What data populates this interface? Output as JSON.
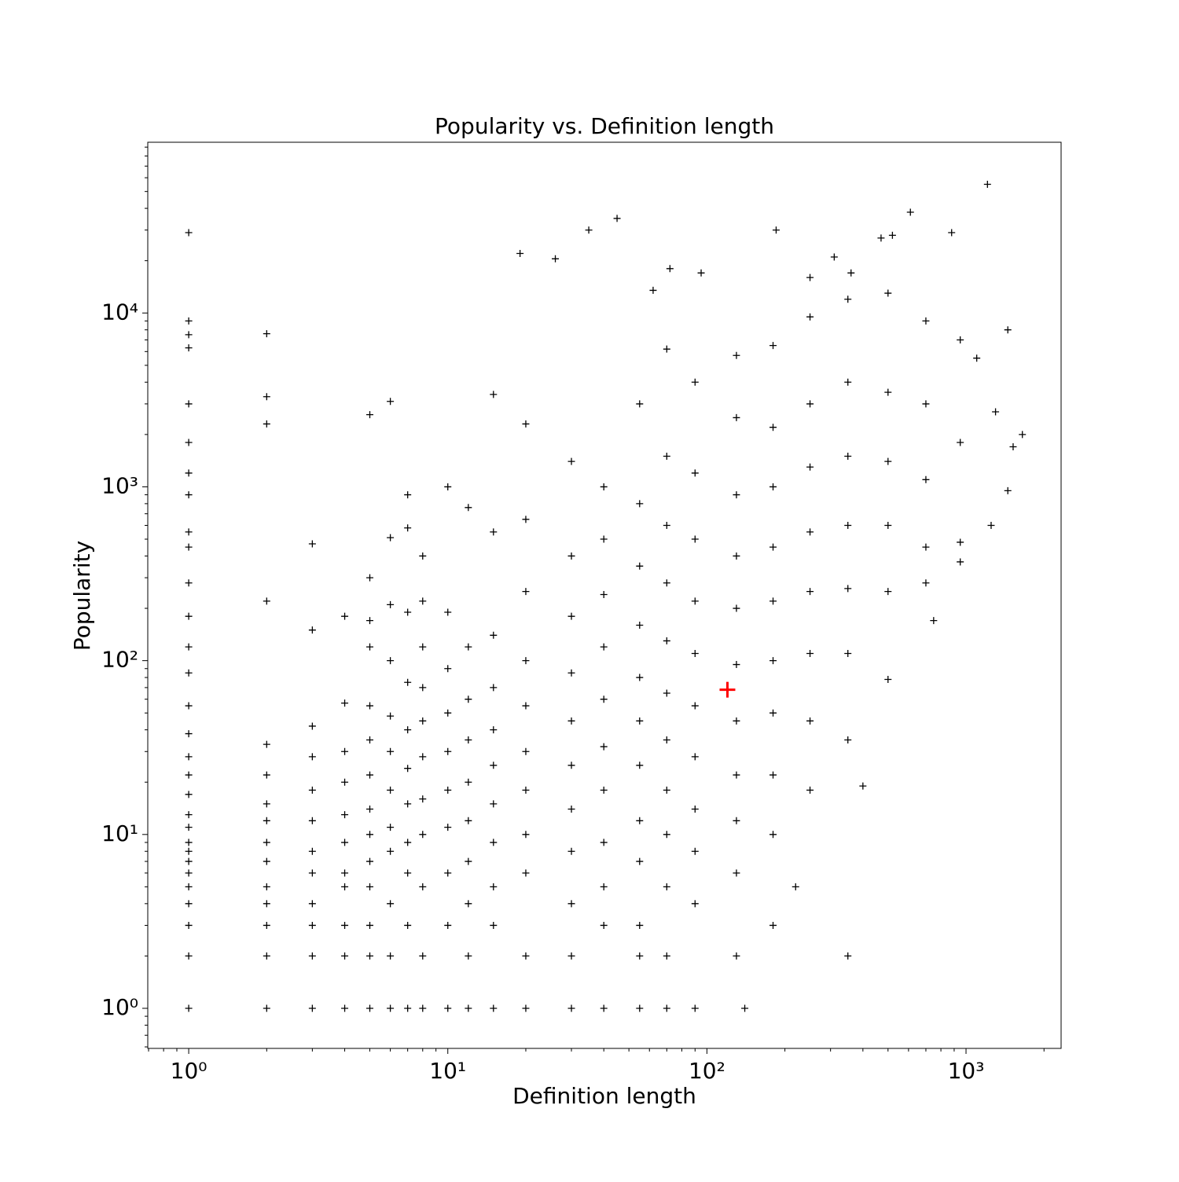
{
  "chart_data": {
    "type": "scatter",
    "title": "Popularity vs. Definition length",
    "x_label": "Definition length",
    "y_label": "Popularity",
    "log_x": true,
    "log_y": true,
    "marker": "+",
    "xlim": [
      0.695,
      2328
    ],
    "ylim": [
      0.588,
      96000
    ],
    "xticks": [
      {
        "value": 1,
        "label": "10⁰"
      },
      {
        "value": 10,
        "label": "10¹"
      },
      {
        "value": 100,
        "label": "10²"
      },
      {
        "value": 1000,
        "label": "10³"
      }
    ],
    "yticks": [
      {
        "value": 1,
        "label": "10⁰"
      },
      {
        "value": 10,
        "label": "10¹"
      },
      {
        "value": 100,
        "label": "10²"
      },
      {
        "value": 1000,
        "label": "10³"
      },
      {
        "value": 10000,
        "label": "10⁴"
      }
    ],
    "xminorticks": [
      0.7,
      0.8,
      0.9,
      2,
      3,
      4,
      5,
      6,
      7,
      8,
      9,
      20,
      30,
      40,
      50,
      60,
      70,
      80,
      90,
      200,
      300,
      400,
      500,
      600,
      700,
      800,
      900,
      2000
    ],
    "yminorticks": [
      0.6,
      0.7,
      0.8,
      0.9,
      2,
      3,
      4,
      5,
      6,
      7,
      8,
      9,
      20,
      30,
      40,
      50,
      60,
      70,
      80,
      90,
      200,
      300,
      400,
      500,
      600,
      700,
      800,
      900,
      2000,
      3000,
      4000,
      5000,
      6000,
      7000,
      8000,
      9000,
      20000,
      30000,
      40000,
      50000,
      60000,
      70000,
      80000,
      90000
    ],
    "series": [
      {
        "color": "#000000",
        "x": [
          1,
          45,
          35,
          19,
          26,
          62,
          72,
          95,
          185,
          610,
          1210,
          880,
          520,
          470,
          310,
          250,
          360,
          1,
          1,
          1,
          2,
          2,
          2,
          6,
          5,
          15,
          1,
          1,
          1,
          1,
          1,
          1,
          1,
          1,
          1,
          1,
          1,
          1,
          1,
          1,
          1,
          1,
          1,
          1,
          1,
          1,
          1,
          1,
          1,
          1,
          1,
          1,
          2,
          2,
          2,
          2,
          2,
          2,
          2,
          2,
          2,
          2,
          2,
          2,
          3,
          3,
          3,
          3,
          3,
          3,
          3,
          3,
          3,
          3,
          3,
          3,
          4,
          4,
          4,
          4,
          4,
          4,
          4,
          4,
          4,
          4,
          4,
          5,
          5,
          5,
          5,
          5,
          5,
          5,
          5,
          5,
          5,
          5,
          5,
          5,
          6,
          6,
          6,
          6,
          6,
          6,
          6,
          6,
          6,
          6,
          6,
          7,
          7,
          7,
          7,
          7,
          7,
          7,
          7,
          7,
          7,
          7,
          8,
          8,
          8,
          8,
          8,
          8,
          8,
          8,
          8,
          8,
          8,
          10,
          10,
          10,
          10,
          10,
          10,
          10,
          10,
          10,
          10,
          12,
          12,
          12,
          12,
          12,
          12,
          12,
          12,
          12,
          12,
          15,
          15,
          15,
          15,
          15,
          15,
          15,
          15,
          15,
          15,
          20,
          20,
          20,
          20,
          20,
          20,
          20,
          20,
          20,
          20,
          20,
          30,
          30,
          30,
          30,
          30,
          30,
          30,
          30,
          30,
          30,
          30,
          40,
          40,
          40,
          40,
          40,
          40,
          40,
          40,
          40,
          40,
          40,
          55,
          55,
          55,
          55,
          55,
          55,
          55,
          55,
          55,
          55,
          55,
          55,
          70,
          70,
          70,
          70,
          70,
          70,
          70,
          70,
          70,
          70,
          70,
          70,
          90,
          90,
          90,
          90,
          90,
          90,
          90,
          90,
          90,
          90,
          90,
          130,
          130,
          130,
          130,
          130,
          130,
          130,
          130,
          130,
          130,
          130,
          180,
          180,
          180,
          180,
          180,
          180,
          180,
          180,
          180,
          180,
          250,
          250,
          250,
          250,
          250,
          250,
          250,
          250,
          350,
          350,
          350,
          350,
          350,
          350,
          350,
          350,
          500,
          500,
          500,
          500,
          500,
          500,
          700,
          700,
          700,
          700,
          700,
          950,
          950,
          950,
          950,
          140,
          220,
          400,
          750,
          1100,
          1250,
          1300,
          1450,
          1450,
          1650,
          1520
        ],
        "values": [
          29000,
          35000,
          30000,
          22000,
          20500,
          13500,
          18000,
          17000,
          30000,
          38000,
          55000,
          29000,
          28000,
          27000,
          21000,
          16000,
          17000,
          9000,
          7500,
          6300,
          7600,
          3300,
          2300,
          3100,
          2600,
          3400,
          3000,
          1800,
          1200,
          900,
          550,
          450,
          280,
          180,
          120,
          85,
          55,
          38,
          28,
          22,
          17,
          13,
          11,
          9,
          8,
          7,
          6,
          5,
          4,
          3,
          2,
          1,
          220,
          33,
          22,
          15,
          12,
          9,
          7,
          5,
          4,
          3,
          2,
          1,
          470,
          150,
          42,
          28,
          18,
          12,
          8,
          6,
          4,
          3,
          2,
          1,
          180,
          57,
          30,
          20,
          13,
          9,
          6,
          5,
          3,
          2,
          1,
          300,
          170,
          120,
          55,
          35,
          22,
          14,
          10,
          7,
          5,
          3,
          2,
          1,
          510,
          210,
          100,
          48,
          30,
          18,
          11,
          8,
          4,
          2,
          1,
          900,
          580,
          190,
          75,
          40,
          24,
          15,
          9,
          6,
          3,
          1,
          400,
          220,
          120,
          70,
          45,
          28,
          16,
          10,
          5,
          2,
          1,
          1000,
          190,
          90,
          50,
          30,
          18,
          11,
          6,
          3,
          1,
          760,
          120,
          60,
          35,
          20,
          12,
          7,
          4,
          2,
          1,
          550,
          140,
          70,
          40,
          25,
          15,
          9,
          5,
          3,
          1,
          2300,
          650,
          250,
          100,
          55,
          30,
          18,
          10,
          6,
          2,
          1,
          1400,
          400,
          180,
          85,
          45,
          25,
          14,
          8,
          4,
          2,
          1,
          1000,
          500,
          240,
          120,
          60,
          32,
          18,
          9,
          5,
          3,
          1,
          3000,
          800,
          350,
          160,
          80,
          45,
          25,
          12,
          7,
          3,
          2,
          1,
          6200,
          1500,
          600,
          280,
          130,
          65,
          35,
          18,
          10,
          5,
          2,
          1,
          4000,
          1200,
          500,
          220,
          110,
          55,
          28,
          14,
          8,
          4,
          1,
          5700,
          2500,
          900,
          400,
          200,
          95,
          45,
          22,
          12,
          6,
          2,
          6500,
          2200,
          1000,
          450,
          220,
          100,
          50,
          22,
          10,
          3,
          9500,
          3000,
          1300,
          550,
          250,
          110,
          45,
          18,
          12000,
          4000,
          1500,
          600,
          260,
          110,
          35,
          2,
          13000,
          3500,
          1400,
          600,
          250,
          78,
          9000,
          3000,
          1100,
          450,
          280,
          7000,
          1800,
          480,
          370,
          1,
          5,
          19,
          170,
          5500,
          600,
          2700,
          8000,
          950,
          2000,
          1700
        ]
      },
      {
        "color": "#ff0000",
        "x": [
          120
        ],
        "values": [
          68
        ]
      }
    ]
  }
}
